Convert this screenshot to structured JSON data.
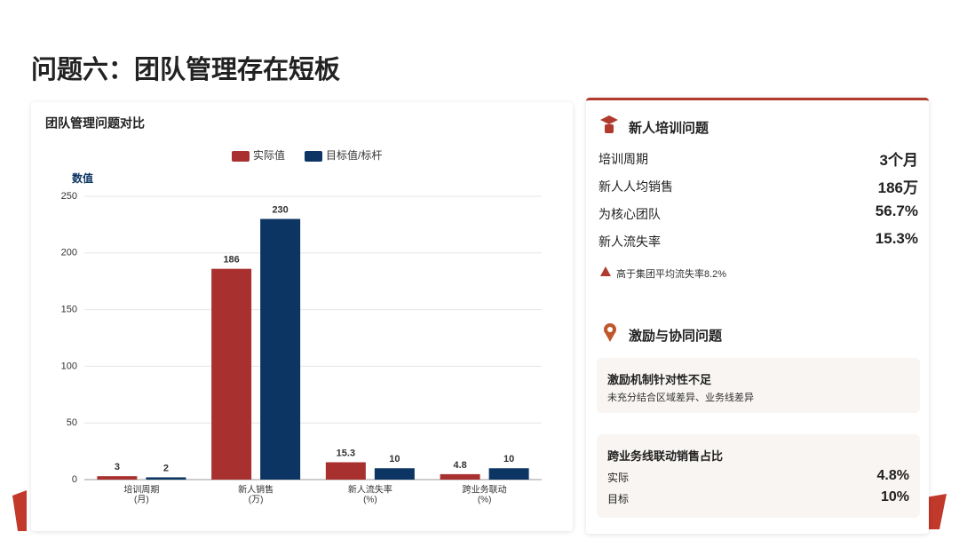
{
  "title": "问题六：团队管理存在短板",
  "chart_data": {
    "type": "bar",
    "title": "团队管理问题对比",
    "y_label": "数值",
    "categories": [
      [
        "培训周期",
        "(月)"
      ],
      [
        "新人销售",
        "(万)"
      ],
      [
        "新人流失率",
        "(%)"
      ],
      [
        "跨业务联动",
        "(%)"
      ]
    ],
    "series": [
      {
        "name": "实际值",
        "color": "#a8302f",
        "values": [
          3,
          186,
          15.3,
          4.8
        ]
      },
      {
        "name": "目标值/标杆",
        "color": "#0d3563",
        "values": [
          2,
          230,
          10,
          10
        ]
      }
    ],
    "ylim": [
      0,
      250
    ],
    "yticks": [
      0,
      50,
      100,
      150,
      200,
      250
    ],
    "grid": true,
    "legend": "top"
  },
  "panel": {
    "training": {
      "heading": "新人培训问题",
      "rows": [
        [
          "培训周期",
          "3个月"
        ],
        [
          "新人人均销售",
          "186万"
        ],
        [
          "为核心团队",
          "56.7%"
        ],
        [
          "新人流失率",
          "15.3%"
        ]
      ],
      "note": "高于集团平均流失率8.2%"
    },
    "incentive": {
      "heading": "激励与协同问题",
      "box1": {
        "title": "激励机制针对性不足",
        "text": "未充分结合区域差异、业务线差异"
      },
      "box2": {
        "title": "跨业务线联动销售占比",
        "rows": [
          [
            "实际",
            "4.8%"
          ],
          [
            "目标",
            "10%"
          ]
        ]
      }
    }
  }
}
